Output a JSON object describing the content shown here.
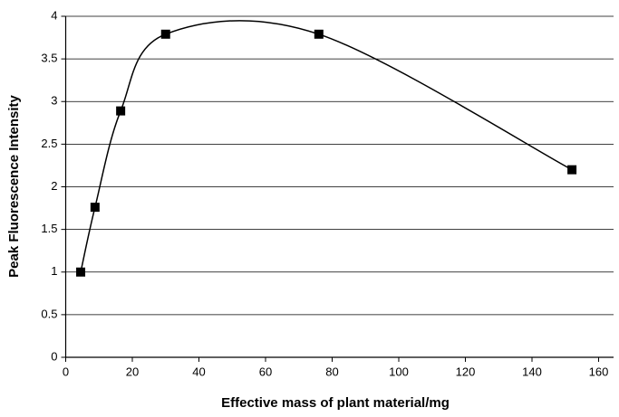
{
  "chart_data": {
    "type": "scatter",
    "x_label": "Effective mass of plant material/mg",
    "y_label": "Peak Fluorescence Intensity",
    "series": [
      {
        "x": [
          4.5,
          8.8,
          16.5,
          30,
          76,
          152
        ],
        "values": [
          1.0,
          1.76,
          2.89,
          3.79,
          3.79,
          2.2
        ],
        "color": "#000000"
      }
    ],
    "xlim": [
      0,
      160
    ],
    "xticks": [
      0,
      20,
      40,
      60,
      80,
      100,
      120,
      140,
      160
    ],
    "ylim": [
      0,
      4
    ],
    "yticks": [
      0,
      0.5,
      1,
      1.5,
      2,
      2.5,
      3,
      3.5,
      4
    ],
    "grid": true,
    "smooth": true
  }
}
